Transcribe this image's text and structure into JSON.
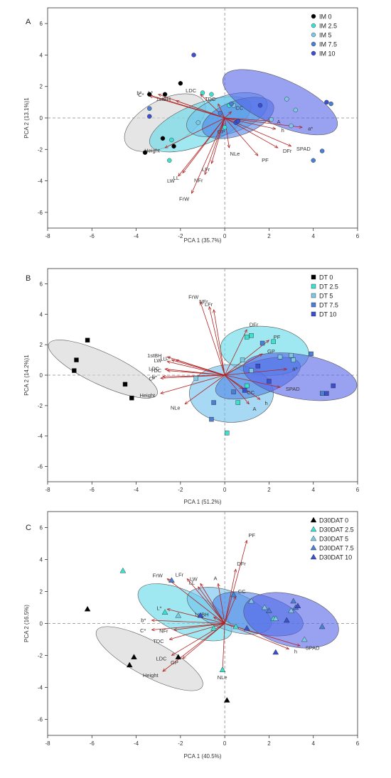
{
  "chart_data": [
    {
      "type": "scatter",
      "panel_label": "A",
      "xlabel": "PCA 1 (35.7%)",
      "ylabel": "PCA 2 (13.1%)1",
      "xlim": [
        -8,
        6
      ],
      "ylim": [
        -7,
        7
      ],
      "xticks": [
        "-8",
        "-6",
        "-4",
        "-2",
        "0",
        "2",
        "4",
        "6"
      ],
      "yticks": [
        "-6",
        "-4",
        "-2",
        "0",
        "2",
        "4",
        "6"
      ],
      "legend_position": "top-right",
      "marker": "circle",
      "series": [
        {
          "name": "IM 0",
          "color": "#000000",
          "points": [
            [
              -3.6,
              -2.2
            ],
            [
              -3.4,
              1.5
            ],
            [
              -2.8,
              -1.3
            ],
            [
              -2.7,
              1.5
            ],
            [
              -2.3,
              -1.8
            ],
            [
              -2.0,
              2.2
            ]
          ]
        },
        {
          "name": "IM 2.5",
          "color": "#40e0d0",
          "points": [
            [
              -2.5,
              -2.7
            ],
            [
              -2.4,
              -1.4
            ],
            [
              -1.0,
              1.6
            ],
            [
              -0.6,
              1.5
            ],
            [
              0.0,
              -0.6
            ],
            [
              0.2,
              0.8
            ]
          ]
        },
        {
          "name": "IM 5",
          "color": "#7ec8e3",
          "points": [
            [
              -1.2,
              -0.3
            ],
            [
              0.4,
              0.8
            ],
            [
              2.1,
              -0.1
            ],
            [
              2.8,
              1.2
            ],
            [
              3.2,
              0.5
            ],
            [
              3.0,
              -0.5
            ]
          ]
        },
        {
          "name": "IM 7.5",
          "color": "#4a7fd4",
          "points": [
            [
              -3.4,
              0.6
            ],
            [
              -0.2,
              0.3
            ],
            [
              0.3,
              0.9
            ],
            [
              4.0,
              -2.7
            ],
            [
              4.4,
              -2.1
            ],
            [
              4.8,
              0.9
            ]
          ]
        },
        {
          "name": "IM 10",
          "color": "#3c4fd0",
          "points": [
            [
              -3.4,
              0.1
            ],
            [
              -1.4,
              4.0
            ],
            [
              0.5,
              -0.3
            ],
            [
              1.6,
              0.8
            ],
            [
              4.6,
              1.0
            ],
            [
              0.6,
              -0.2
            ]
          ]
        }
      ],
      "ellipses": [
        {
          "series": "IM 0",
          "center": [
            -2.7,
            -0.3
          ],
          "rx": 2.0,
          "ry": 1.45,
          "angle": 28
        },
        {
          "series": "IM 2.5",
          "center": [
            -1.1,
            -0.4
          ],
          "rx": 2.45,
          "ry": 1.3,
          "angle": 22
        },
        {
          "series": "IM 5",
          "center": [
            0.1,
            0.2
          ],
          "rx": 1.9,
          "ry": 1.2,
          "angle": 18
        },
        {
          "series": "IM 7.5",
          "center": [
            0.6,
            0.0
          ],
          "rx": 1.7,
          "ry": 1.1,
          "angle": 20
        },
        {
          "series": "IM 10",
          "center": [
            2.5,
            1.0
          ],
          "rx": 2.8,
          "ry": 1.45,
          "angle": -24
        }
      ],
      "loadings": [
        {
          "label": "C*",
          "x": -3.4,
          "y": 1.4
        },
        {
          "label": "b*",
          "x": -3.5,
          "y": 1.5
        },
        {
          "label": "L*",
          "x": -3.0,
          "y": 1.5
        },
        {
          "label": "1stBH",
          "x": -2.2,
          "y": 1.1
        },
        {
          "label": "LDC",
          "x": -1.1,
          "y": 1.5
        },
        {
          "label": "TDC",
          "x": -0.3,
          "y": 0.9
        },
        {
          "label": "GP",
          "x": -0.1,
          "y": -0.5
        },
        {
          "label": "CC",
          "x": 0.3,
          "y": 0.4
        },
        {
          "label": "Height",
          "x": -2.7,
          "y": -1.9
        },
        {
          "label": "LW",
          "x": -2.1,
          "y": -3.7
        },
        {
          "label": "LL",
          "x": -1.9,
          "y": -3.5
        },
        {
          "label": "NFr",
          "x": -0.9,
          "y": -3.6
        },
        {
          "label": "FrW",
          "x": -1.5,
          "y": -4.8
        },
        {
          "label": "LFr",
          "x": -0.6,
          "y": -2.9
        },
        {
          "label": "NLe",
          "x": 0.2,
          "y": -1.9
        },
        {
          "label": "PF",
          "x": 1.5,
          "y": -2.4
        },
        {
          "label": "DFr",
          "x": 2.4,
          "y": -1.9
        },
        {
          "label": "SPAD",
          "x": 3.0,
          "y": -1.8
        },
        {
          "label": "a*",
          "x": 3.5,
          "y": -0.6
        },
        {
          "label": "A",
          "x": 2.1,
          "y": -0.2
        },
        {
          "label": "h",
          "x": 2.3,
          "y": -0.7
        }
      ]
    },
    {
      "type": "scatter",
      "panel_label": "B",
      "xlabel": "PCA 1 (51.2%)",
      "ylabel": "PCA 2 (14.2%)1",
      "xlim": [
        -8,
        6
      ],
      "ylim": [
        -7,
        7
      ],
      "xticks": [
        "-8",
        "-6",
        "-4",
        "-2",
        "0",
        "2",
        "4",
        "6"
      ],
      "yticks": [
        "-6",
        "-4",
        "-2",
        "0",
        "2",
        "4",
        "6"
      ],
      "legend_position": "top-right",
      "marker": "square",
      "series": [
        {
          "name": "DT 0",
          "color": "#000000",
          "points": [
            [
              -6.2,
              2.3
            ],
            [
              -6.7,
              1.0
            ],
            [
              -6.8,
              0.3
            ],
            [
              -4.5,
              -0.6
            ],
            [
              -4.2,
              -1.5
            ]
          ]
        },
        {
          "name": "DT 2.5",
          "color": "#40e0d0",
          "points": [
            [
              1.0,
              2.5
            ],
            [
              1.2,
              2.6
            ],
            [
              2.2,
              2.2
            ],
            [
              0.1,
              -3.8
            ],
            [
              0.6,
              -1.8
            ],
            [
              1.0,
              -0.7
            ]
          ]
        },
        {
          "name": "DT 5",
          "color": "#7ec8e3",
          "points": [
            [
              -1.3,
              -0.2
            ],
            [
              1.2,
              0.3
            ],
            [
              2.5,
              1.2
            ],
            [
              3.1,
              1.0
            ],
            [
              3.0,
              1.3
            ],
            [
              0.8,
              1.0
            ]
          ]
        },
        {
          "name": "DT 7.5",
          "color": "#4a7fd4",
          "points": [
            [
              -0.6,
              -2.9
            ],
            [
              -0.5,
              -1.8
            ],
            [
              0.4,
              -1.1
            ],
            [
              1.7,
              2.1
            ],
            [
              3.9,
              1.4
            ],
            [
              4.4,
              -1.2
            ]
          ]
        },
        {
          "name": "DT 10",
          "color": "#3c4fd0",
          "points": [
            [
              0.9,
              -1.0
            ],
            [
              2.0,
              -0.4
            ],
            [
              4.9,
              -0.7
            ],
            [
              4.6,
              -1.2
            ],
            [
              1.5,
              0.6
            ]
          ]
        }
      ],
      "ellipses": [
        {
          "series": "DT 0",
          "center": [
            -5.5,
            0.4
          ],
          "rx": 2.7,
          "ry": 1.05,
          "angle": -25
        },
        {
          "series": "DT 2.5",
          "center": [
            1.8,
            1.6
          ],
          "rx": 2.0,
          "ry": 1.6,
          "angle": -5
        },
        {
          "series": "DT 5",
          "center": [
            0.3,
            -1.2
          ],
          "rx": 1.9,
          "ry": 1.9,
          "angle": 0
        },
        {
          "series": "DT 7.5",
          "center": [
            1.5,
            -0.2
          ],
          "rx": 2.0,
          "ry": 1.1,
          "angle": 18
        },
        {
          "series": "DT 10",
          "center": [
            3.4,
            -0.1
          ],
          "rx": 2.6,
          "ry": 1.45,
          "angle": -10
        }
      ],
      "loadings": [
        {
          "label": "FrW",
          "x": -1.1,
          "y": 4.8
        },
        {
          "label": "NFr",
          "x": -0.7,
          "y": 4.5
        },
        {
          "label": "LFr",
          "x": -0.5,
          "y": 4.3
        },
        {
          "label": "DFr",
          "x": 1.0,
          "y": 3.0
        },
        {
          "label": "PF",
          "x": 2.0,
          "y": 2.3
        },
        {
          "label": "GP",
          "x": 1.7,
          "y": 1.4
        },
        {
          "label": "a*",
          "x": 2.8,
          "y": 0.4
        },
        {
          "label": "SPAD",
          "x": 2.5,
          "y": -0.8
        },
        {
          "label": "h",
          "x": 1.6,
          "y": -1.6
        },
        {
          "label": "A",
          "x": 1.1,
          "y": -1.9
        },
        {
          "label": "CC",
          "x": 0.8,
          "y": -0.9
        },
        {
          "label": "1stBH",
          "x": -2.6,
          "y": 1.2
        },
        {
          "label": "LW",
          "x": -2.6,
          "y": 0.9
        },
        {
          "label": "LL",
          "x": -2.4,
          "y": 1.0
        },
        {
          "label": "L*",
          "x": -2.2,
          "y": 1.0
        },
        {
          "label": "LDC",
          "x": -2.7,
          "y": 0.4
        },
        {
          "label": "TDC",
          "x": -2.6,
          "y": 0.3
        },
        {
          "label": "C*",
          "x": -2.9,
          "y": -0.2
        },
        {
          "label": "b*",
          "x": -2.8,
          "y": -0.1
        },
        {
          "label": "Height",
          "x": -2.9,
          "y": -1.2
        },
        {
          "label": "NLe",
          "x": -1.8,
          "y": -1.9
        }
      ]
    },
    {
      "type": "scatter",
      "panel_label": "C",
      "xlabel": "PCA 1 (40.5%)",
      "ylabel": "PCA 2 (16.5%)",
      "xlim": [
        -8,
        6
      ],
      "ylim": [
        -7,
        7
      ],
      "xticks": [
        "-8",
        "-6",
        "-4",
        "-2",
        "0",
        "2",
        "4",
        "6"
      ],
      "yticks": [
        "-6",
        "-4",
        "-2",
        "0",
        "2",
        "4",
        "6"
      ],
      "legend_position": "top-right",
      "marker": "triangle",
      "series": [
        {
          "name": "D30DAT 0",
          "color": "#000000",
          "points": [
            [
              -6.2,
              0.9
            ],
            [
              -4.3,
              -2.6
            ],
            [
              -4.1,
              -2.1
            ],
            [
              -2.1,
              -2.1
            ],
            [
              0.1,
              -4.8
            ]
          ]
        },
        {
          "name": "D30DAT 2.5",
          "color": "#40e0d0",
          "points": [
            [
              -4.6,
              3.3
            ],
            [
              -2.7,
              0.7
            ],
            [
              -0.5,
              -0.3
            ],
            [
              -0.1,
              -2.9
            ],
            [
              0.5,
              -0.2
            ],
            [
              2.2,
              0.3
            ]
          ]
        },
        {
          "name": "D30DAT 5",
          "color": "#7ec8e3",
          "points": [
            [
              -2.1,
              0.5
            ],
            [
              1.2,
              1.4
            ],
            [
              1.8,
              1.0
            ],
            [
              2.3,
              0.3
            ],
            [
              3.0,
              0.8
            ],
            [
              3.6,
              -1.0
            ]
          ]
        },
        {
          "name": "D30DAT 7.5",
          "color": "#4a7fd4",
          "points": [
            [
              -2.4,
              2.7
            ],
            [
              0.4,
              1.8
            ],
            [
              2.0,
              0.8
            ],
            [
              3.2,
              1.0
            ],
            [
              3.1,
              1.4
            ],
            [
              4.4,
              -0.2
            ]
          ]
        },
        {
          "name": "D30DAT 10",
          "color": "#3c4fd0",
          "points": [
            [
              -1.1,
              0.5
            ],
            [
              1.0,
              -0.3
            ],
            [
              2.3,
              -1.8
            ],
            [
              3.3,
              1.1
            ],
            [
              2.8,
              0.2
            ]
          ]
        }
      ],
      "ellipses": [
        {
          "series": "D30DAT 0",
          "center": [
            -3.4,
            -2.2
          ],
          "rx": 2.7,
          "ry": 1.1,
          "angle": -28
        },
        {
          "series": "D30DAT 2.5",
          "center": [
            -1.8,
            0.7
          ],
          "rx": 2.3,
          "ry": 1.3,
          "angle": -25
        },
        {
          "series": "D30DAT 5",
          "center": [
            0.2,
            0.8
          ],
          "rx": 2.0,
          "ry": 1.2,
          "angle": -20
        },
        {
          "series": "D30DAT 7.5",
          "center": [
            1.5,
            0.6
          ],
          "rx": 2.1,
          "ry": 1.2,
          "angle": -15
        },
        {
          "series": "D30DAT 10",
          "center": [
            3.0,
            0.2
          ],
          "rx": 2.2,
          "ry": 1.6,
          "angle": -15
        }
      ],
      "loadings": [
        {
          "label": "PF",
          "x": 1.0,
          "y": 5.2
        },
        {
          "label": "DFr",
          "x": 0.5,
          "y": 3.4
        },
        {
          "label": "LFr",
          "x": -1.7,
          "y": 2.8
        },
        {
          "label": "LW",
          "x": -1.1,
          "y": 2.5
        },
        {
          "label": "LL",
          "x": -1.2,
          "y": 2.3
        },
        {
          "label": "A",
          "x": -0.3,
          "y": 2.5
        },
        {
          "label": "FrW",
          "x": -2.6,
          "y": 2.8
        },
        {
          "label": "CC",
          "x": 0.5,
          "y": 1.7
        },
        {
          "label": "1stBH",
          "x": -0.5,
          "y": 0.4
        },
        {
          "label": "L*",
          "x": -2.6,
          "y": 0.9
        },
        {
          "label": "b*",
          "x": -3.3,
          "y": 0.2
        },
        {
          "label": "C*",
          "x": -3.3,
          "y": -0.4
        },
        {
          "label": "NFr",
          "x": -2.3,
          "y": -0.4
        },
        {
          "label": "TDC",
          "x": -2.5,
          "y": -1.0
        },
        {
          "label": "LDC",
          "x": -2.4,
          "y": -2.0
        },
        {
          "label": "GP",
          "x": -1.9,
          "y": -2.2
        },
        {
          "label": "Height",
          "x": -2.8,
          "y": -3.0
        },
        {
          "label": "NLe",
          "x": -0.1,
          "y": -3.0
        },
        {
          "label": "SPAD",
          "x": 3.4,
          "y": -1.4
        },
        {
          "label": "h",
          "x": 2.9,
          "y": -1.6
        }
      ]
    }
  ]
}
